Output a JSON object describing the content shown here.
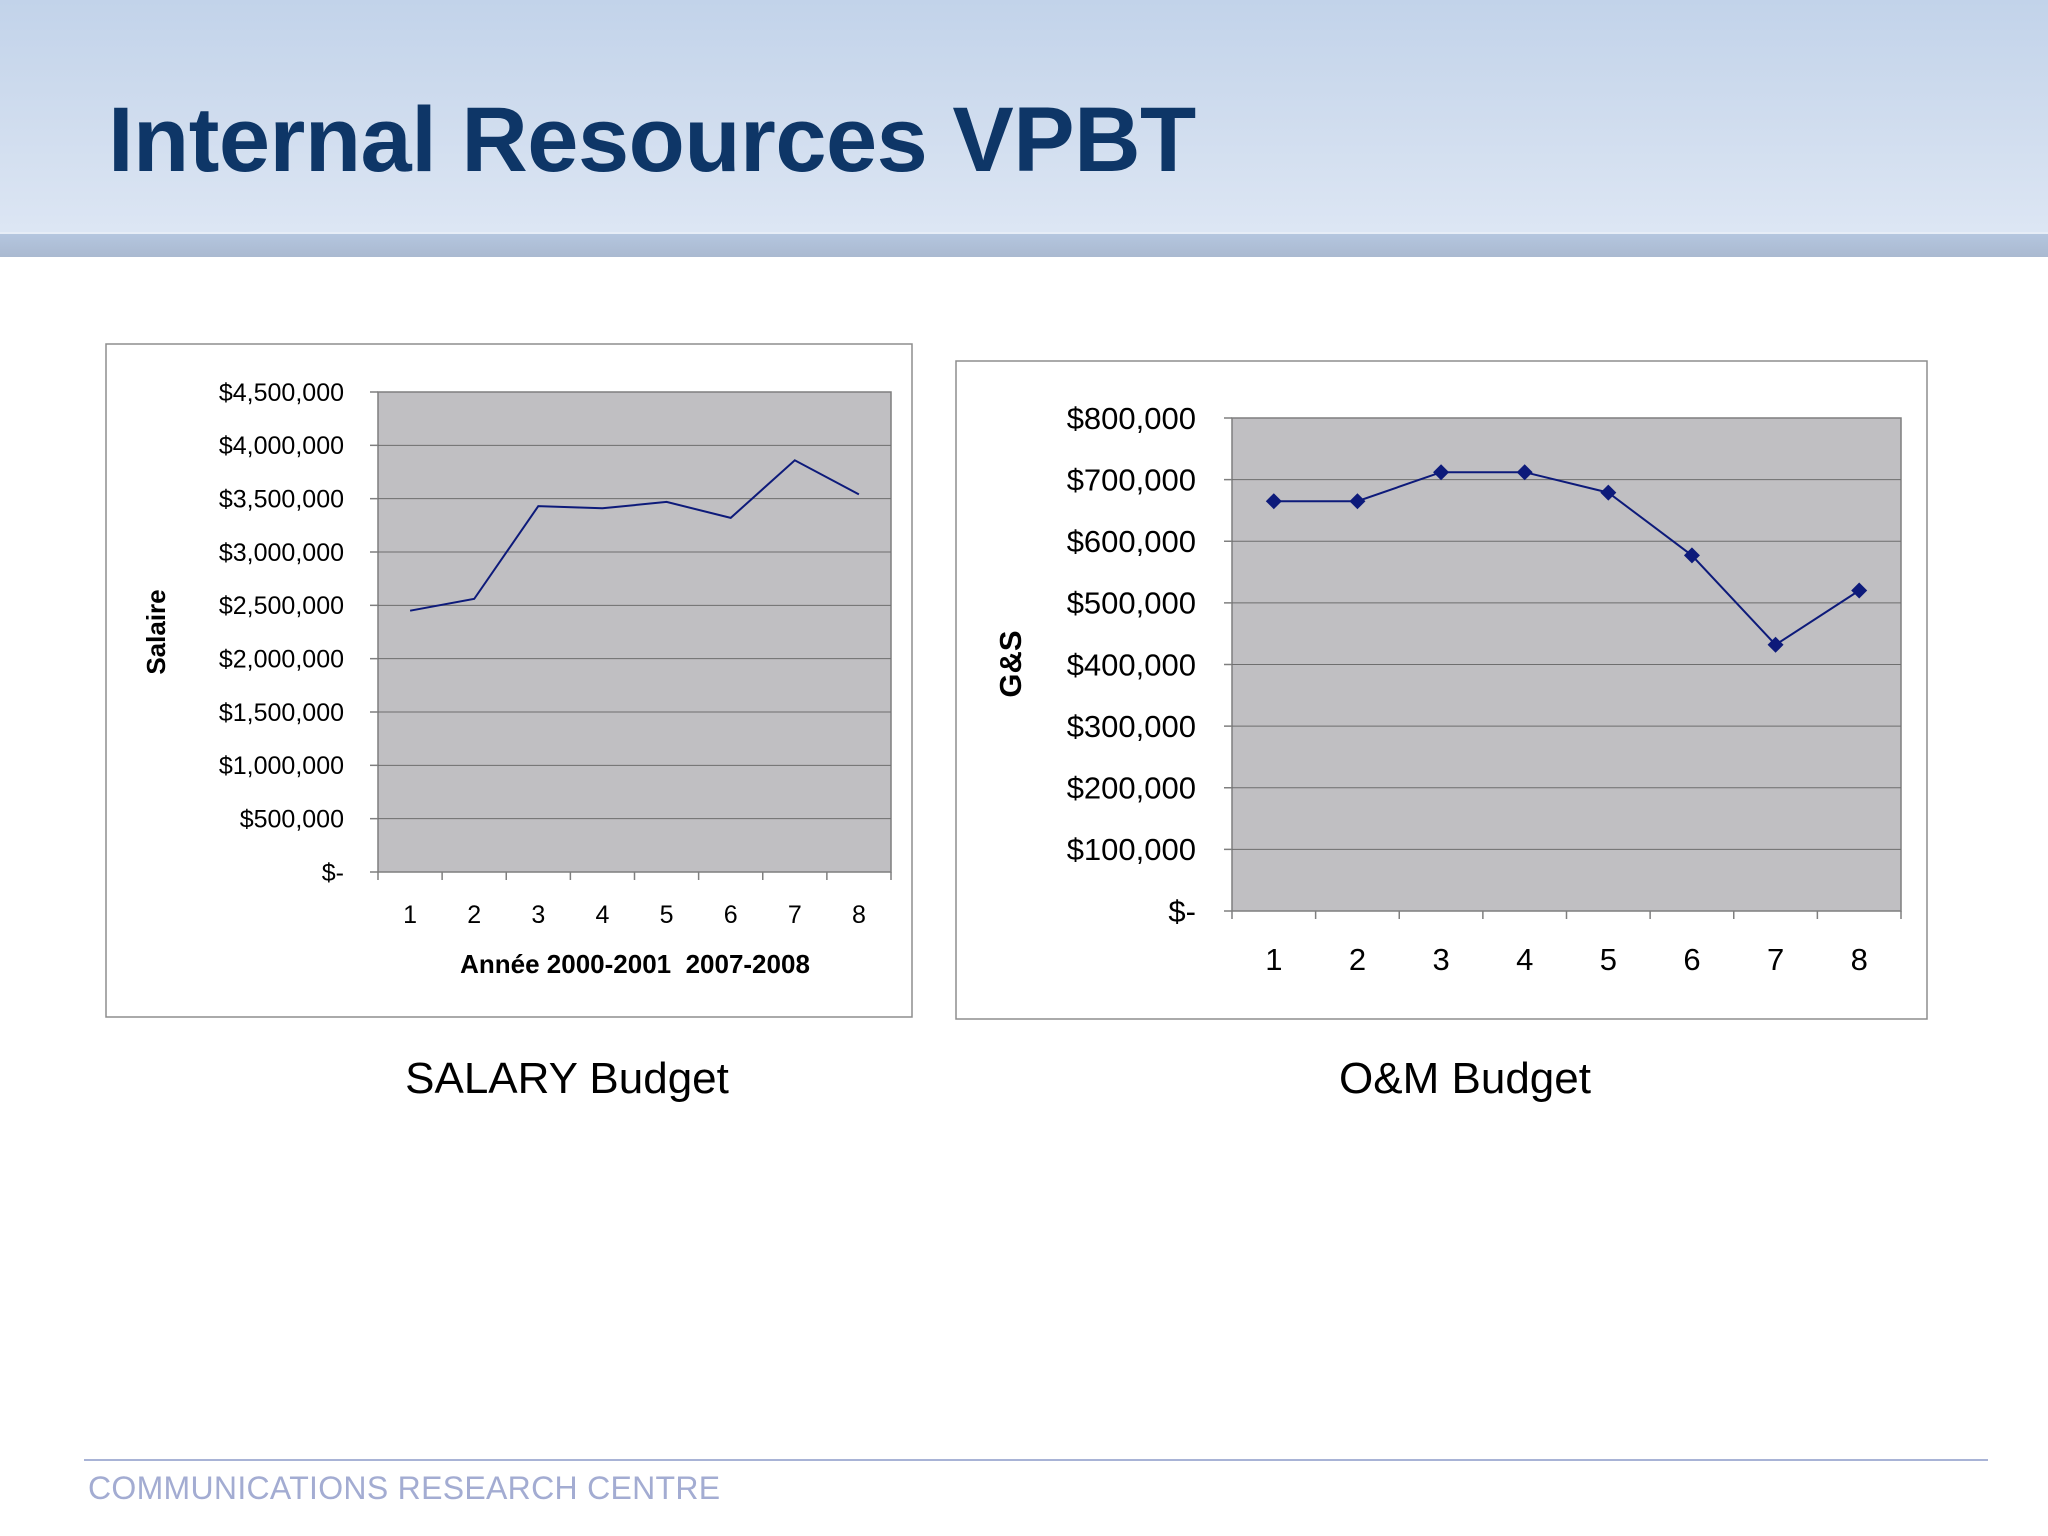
{
  "slide": {
    "title": "Internal Resources VPBT",
    "footer": "COMMUNICATIONS RESEARCH CENTRE"
  },
  "colors": {
    "title": "#0e3667",
    "plot_background": "#c0bfc2",
    "series_line": "#0d1a7a",
    "footer_text": "#a3acd2"
  },
  "chart_data": [
    {
      "type": "line",
      "caption": "SALARY Budget",
      "title": "",
      "xlabel": "Année 2000-2001  2007-2008",
      "ylabel": "Salaire",
      "categories": [
        "1",
        "2",
        "3",
        "4",
        "5",
        "6",
        "7",
        "8"
      ],
      "series": [
        {
          "name": "Salaire",
          "values": [
            2450000,
            2560000,
            3430000,
            3410000,
            3470000,
            3320000,
            3860000,
            3540000
          ]
        }
      ],
      "markers": false,
      "ylim": [
        0,
        4500000
      ],
      "ytick_values": [
        0,
        500000,
        1000000,
        1500000,
        2000000,
        2500000,
        3000000,
        3500000,
        4000000,
        4500000
      ],
      "ytick_labels": [
        "$-",
        "$500,000",
        "$1,000,000",
        "$1,500,000",
        "$2,000,000",
        "$2,500,000",
        "$3,000,000",
        "$3,500,000",
        "$4,000,000",
        "$4,500,000"
      ],
      "grid": true
    },
    {
      "type": "line",
      "caption": "O&M Budget",
      "title": "",
      "xlabel": "",
      "ylabel": "G&S",
      "categories": [
        "1",
        "2",
        "3",
        "4",
        "5",
        "6",
        "7",
        "8"
      ],
      "series": [
        {
          "name": "G&S",
          "values": [
            665000,
            665000,
            712000,
            712000,
            679000,
            577000,
            432000,
            520000
          ]
        }
      ],
      "markers": true,
      "ylim": [
        0,
        800000
      ],
      "ytick_values": [
        0,
        100000,
        200000,
        300000,
        400000,
        500000,
        600000,
        700000,
        800000
      ],
      "ytick_labels": [
        "$-",
        "$100,000",
        "$200,000",
        "$300,000",
        "$400,000",
        "$500,000",
        "$600,000",
        "$700,000",
        "$800,000"
      ],
      "grid": true
    }
  ]
}
